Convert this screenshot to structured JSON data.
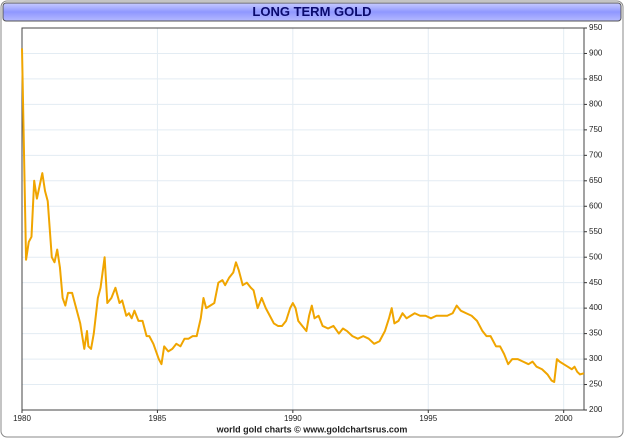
{
  "chart_data": {
    "type": "line",
    "title": "LONG TERM GOLD",
    "footer": "world gold charts © www.goldchartsrus.com",
    "series": [
      {
        "name": "Gold",
        "color": "#f0a500",
        "x": [
          1980.0,
          1980.15,
          1980.25,
          1980.35,
          1980.45,
          1980.55,
          1980.65,
          1980.75,
          1980.85,
          1980.95,
          1981.1,
          1981.2,
          1981.3,
          1981.4,
          1981.5,
          1981.6,
          1981.7,
          1981.85,
          1982.0,
          1982.15,
          1982.3,
          1982.4,
          1982.45,
          1982.55,
          1982.65,
          1982.8,
          1982.9,
          1983.05,
          1983.15,
          1983.3,
          1983.45,
          1983.6,
          1983.7,
          1983.85,
          1983.95,
          1984.05,
          1984.15,
          1984.3,
          1984.45,
          1984.6,
          1984.7,
          1984.85,
          1985.05,
          1985.15,
          1985.25,
          1985.4,
          1985.55,
          1985.7,
          1985.85,
          1986.0,
          1986.15,
          1986.3,
          1986.45,
          1986.6,
          1986.7,
          1986.8,
          1986.95,
          1987.1,
          1987.25,
          1987.4,
          1987.5,
          1987.65,
          1987.8,
          1987.9,
          1988.0,
          1988.15,
          1988.3,
          1988.45,
          1988.55,
          1988.7,
          1988.85,
          1989.0,
          1989.15,
          1989.3,
          1989.45,
          1989.6,
          1989.75,
          1989.9,
          1990.0,
          1990.1,
          1990.2,
          1990.35,
          1990.5,
          1990.6,
          1990.7,
          1990.8,
          1990.95,
          1991.1,
          1991.3,
          1991.5,
          1991.7,
          1991.85,
          1992.0,
          1992.2,
          1992.4,
          1992.6,
          1992.8,
          1993.0,
          1993.2,
          1993.4,
          1993.55,
          1993.65,
          1993.75,
          1993.9,
          1994.05,
          1994.2,
          1994.35,
          1994.5,
          1994.7,
          1994.9,
          1995.1,
          1995.3,
          1995.5,
          1995.7,
          1995.9,
          1996.05,
          1996.2,
          1996.4,
          1996.6,
          1996.8,
          1997.0,
          1997.15,
          1997.3,
          1997.5,
          1997.65,
          1997.8,
          1997.95,
          1998.1,
          1998.3,
          1998.5,
          1998.7,
          1998.85,
          1999.0,
          1999.2,
          1999.4,
          1999.55,
          1999.65,
          1999.75,
          1999.85,
          2000.0,
          2000.15,
          2000.3,
          2000.4,
          2000.5,
          2000.6,
          2000.75
        ],
        "values": [
          910,
          495,
          530,
          540,
          650,
          615,
          640,
          665,
          630,
          610,
          500,
          490,
          515,
          480,
          420,
          405,
          430,
          430,
          400,
          370,
          320,
          355,
          325,
          320,
          350,
          420,
          440,
          500,
          410,
          420,
          440,
          410,
          415,
          385,
          390,
          380,
          395,
          375,
          375,
          345,
          345,
          330,
          300,
          290,
          325,
          315,
          320,
          330,
          325,
          340,
          340,
          345,
          345,
          380,
          420,
          400,
          405,
          410,
          450,
          455,
          445,
          460,
          470,
          490,
          475,
          445,
          450,
          440,
          435,
          400,
          420,
          400,
          385,
          370,
          365,
          365,
          375,
          400,
          410,
          400,
          375,
          365,
          355,
          385,
          405,
          380,
          385,
          365,
          360,
          365,
          350,
          360,
          355,
          345,
          340,
          345,
          340,
          330,
          335,
          355,
          380,
          400,
          370,
          375,
          390,
          380,
          385,
          390,
          385,
          385,
          380,
          385,
          385,
          385,
          390,
          405,
          395,
          390,
          385,
          375,
          355,
          345,
          345,
          325,
          325,
          310,
          290,
          300,
          300,
          295,
          290,
          295,
          285,
          280,
          270,
          258,
          255,
          300,
          295,
          290,
          285,
          280,
          285,
          275,
          270,
          272
        ]
      }
    ],
    "xlim": [
      1980,
      2000.75
    ],
    "xticks": [
      1980,
      1985,
      1990,
      1995,
      2000
    ],
    "ylim": [
      200,
      950
    ],
    "yticks": [
      200,
      250,
      300,
      350,
      400,
      450,
      500,
      550,
      600,
      650,
      700,
      750,
      800,
      850,
      900,
      950
    ],
    "grid": true
  }
}
